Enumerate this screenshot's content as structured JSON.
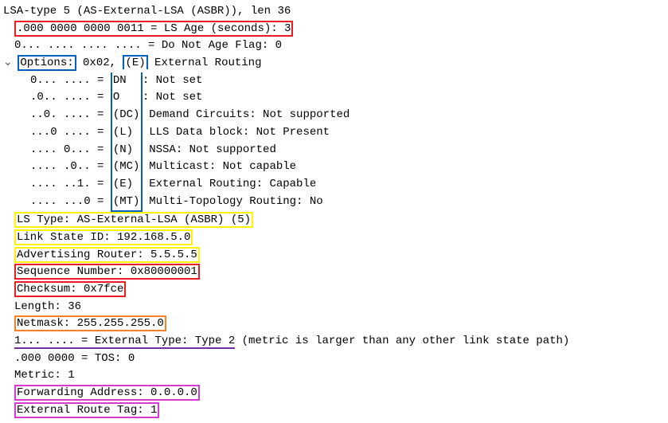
{
  "colors": {
    "border_red": "#ed1c24",
    "border_blue": "#0060bf",
    "border_yellow": "#fff200",
    "border_orange": "#ff7f27",
    "border_magenta": "#d63bd6",
    "underline_purple": "#7030a0"
  },
  "header": {
    "text": "LSA-type 5 (AS-External-LSA (ASBR)), len 36"
  },
  "ls_age": {
    "prefix": ".000 0000 0000 0011 = LS Age (seconds): 3",
    "box_color": "#ed1c24"
  },
  "do_not_age": {
    "text": "0... .... .... .... = Do Not Age Flag: 0"
  },
  "options": {
    "label_box": "Options:",
    "label_color": "#0060bf",
    "value_prefix": " 0x02, ",
    "e_box": "(E)",
    "e_box_color": "#0060bf",
    "suffix": " External Routing",
    "flags": [
      {
        "bits": "0... .... = ",
        "abbr": "DN",
        "desc": ": Not set"
      },
      {
        "bits": ".0.. .... = ",
        "abbr": "O",
        "desc": ": Not set"
      },
      {
        "bits": "..0. .... = ",
        "abbr": "(DC)",
        "desc": " Demand Circuits: Not supported"
      },
      {
        "bits": "...0 .... = ",
        "abbr": "(L)",
        "desc": " LLS Data block: Not Present"
      },
      {
        "bits": ".... 0... = ",
        "abbr": "(N)",
        "desc": " NSSA: Not supported"
      },
      {
        "bits": ".... .0.. = ",
        "abbr": "(MC)",
        "desc": " Multicast: Not capable"
      },
      {
        "bits": ".... ..1. = ",
        "abbr": "(E)",
        "desc": " External Routing: Capable"
      },
      {
        "bits": ".... ...0 = ",
        "abbr": "(MT)",
        "desc": " Multi-Topology Routing: No"
      }
    ],
    "flag_box_color": "#0060bf"
  },
  "ls_type": {
    "text": "LS Type: AS-External-LSA (ASBR) (5)",
    "box_color": "#fff200"
  },
  "link_state": {
    "text": "Link State ID: 192.168.5.0",
    "box_color": "#fff200"
  },
  "adv_router": {
    "text": "Advertising Router: 5.5.5.5",
    "box_color": "#fff200"
  },
  "seq_num": {
    "text": "Sequence Number: 0x80000001",
    "box_color": "#ed1c24"
  },
  "checksum": {
    "text": "Checksum: 0x7fce",
    "box_color": "#ed1c24"
  },
  "length": {
    "text": "Length: 36"
  },
  "netmask": {
    "text": "Netmask: 255.255.255.0",
    "box_color": "#ff7f27"
  },
  "ext_type": {
    "prefix": "1... .... = External Type: Type 2",
    "suffix": " (metric is larger than any other link state path)",
    "underline_color": "#7030a0"
  },
  "tos": {
    "text": ".000 0000 = TOS: 0"
  },
  "metric": {
    "text": "Metric: 1"
  },
  "fwd_addr": {
    "text": "Forwarding Address: 0.0.0.0",
    "box_color": "#d63bd6"
  },
  "ext_tag": {
    "text": "External Route Tag: 1",
    "box_color": "#d63bd6"
  }
}
